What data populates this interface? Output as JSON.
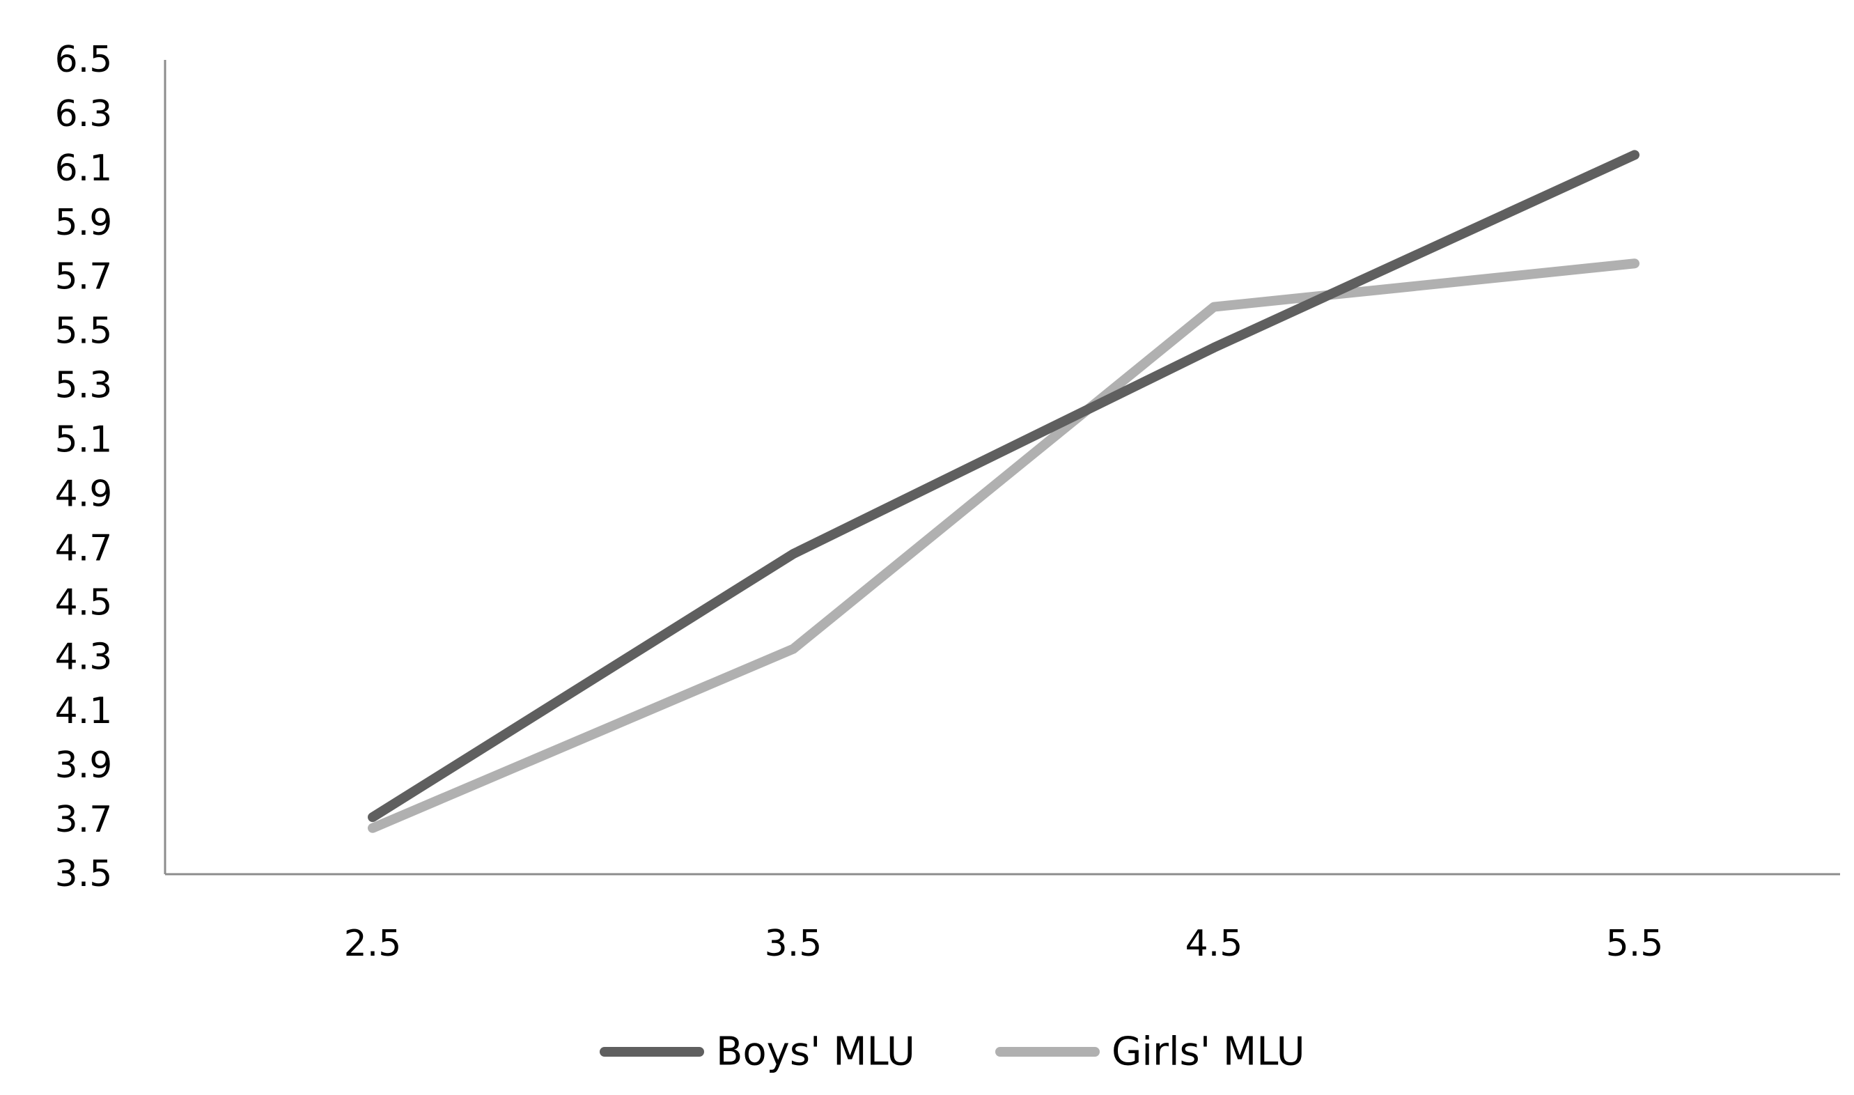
{
  "chart_data": {
    "type": "line",
    "title": "",
    "xlabel": "",
    "ylabel": "",
    "x": [
      2.5,
      3.5,
      4.5,
      5.5
    ],
    "x_tick_labels": [
      "2.5",
      "3.5",
      "4.5",
      "5.5"
    ],
    "y_tick_labels": [
      "3.5",
      "3.7",
      "3.9",
      "4.1",
      "4.3",
      "4.5",
      "4.7",
      "4.9",
      "5.1",
      "5.3",
      "5.5",
      "5.7",
      "5.9",
      "6.1",
      "6.3",
      "6.5"
    ],
    "ylim": [
      3.5,
      6.5
    ],
    "grid": false,
    "legend_position": "bottom",
    "series": [
      {
        "name": "Boys' MLU",
        "color": "#5f5f5f",
        "values": [
          3.71,
          4.68,
          5.44,
          6.15
        ]
      },
      {
        "name": "Girls' MLU",
        "color": "#b0b0b0",
        "values": [
          3.67,
          4.33,
          5.59,
          5.75
        ]
      }
    ]
  }
}
